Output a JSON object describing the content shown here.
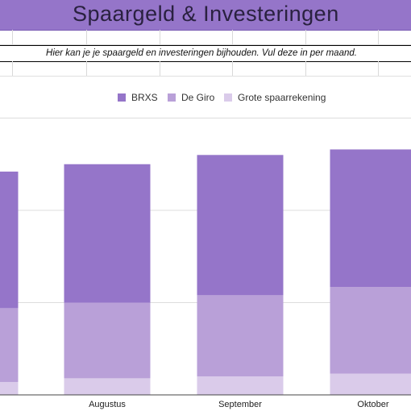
{
  "sheet": {
    "title": "Spaargeld & Investeringen",
    "subtitle": "Hier kan je je spaargeld en investeringen bijhouden. Vul deze in per maand."
  },
  "colors": {
    "header_band": "#9575c9",
    "brxs": "#9575c9",
    "degiro": "#b9a0d8",
    "grote": "#dacbea"
  },
  "chart_data": {
    "type": "bar",
    "stacked": true,
    "categories": [
      "",
      "Augustus",
      "September",
      "Oktober"
    ],
    "series": [
      {
        "name": "Grote spaarrekening",
        "values": [
          1.4,
          1.8,
          2.0,
          2.3
        ]
      },
      {
        "name": "De Giro",
        "values": [
          8.0,
          8.2,
          8.8,
          9.4
        ]
      },
      {
        "name": "BRXS",
        "values": [
          14.8,
          15.0,
          15.2,
          14.9
        ]
      }
    ],
    "legend": [
      "BRXS",
      "De Giro",
      "Grote spaarrekening"
    ],
    "legend_position": "top",
    "ylim": [
      0,
      30
    ],
    "grid": true
  }
}
